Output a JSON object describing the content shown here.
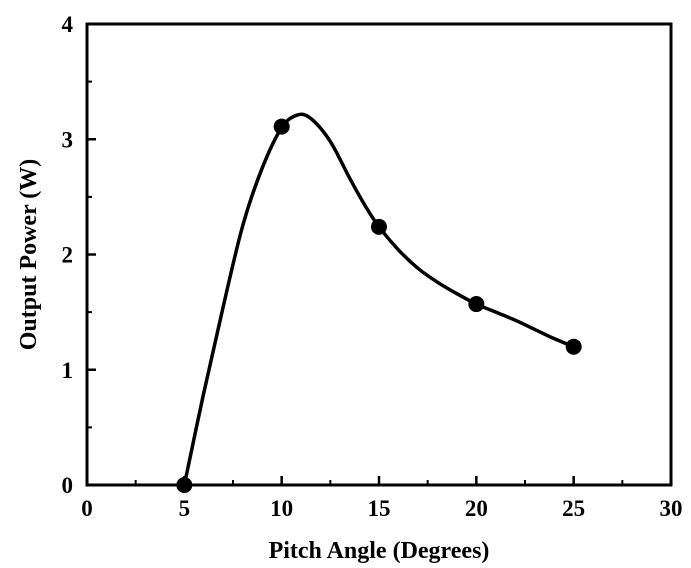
{
  "chart_data": {
    "type": "line",
    "title": "",
    "xlabel": "Pitch Angle (Degrees)",
    "ylabel": "Output Power (W)",
    "xlim": [
      0,
      30
    ],
    "ylim": [
      0,
      4
    ],
    "x_ticks": [
      0,
      5,
      10,
      15,
      20,
      25,
      30
    ],
    "y_ticks": [
      0,
      1,
      2,
      3,
      4
    ],
    "x_tick_labels": [
      "0",
      "5",
      "10",
      "15",
      "20",
      "25",
      "30"
    ],
    "y_tick_labels": [
      "0",
      "1",
      "2",
      "3",
      "4"
    ],
    "grid": false,
    "legend": "none",
    "series": [
      {
        "points": [
          {
            "x": 5,
            "y": 0.0
          },
          {
            "x": 10,
            "y": 3.11
          },
          {
            "x": 15,
            "y": 2.24
          },
          {
            "x": 20,
            "y": 1.57
          },
          {
            "x": 25,
            "y": 1.2
          }
        ],
        "smooth_curve": [
          {
            "x": 5,
            "y": 0.0
          },
          {
            "x": 6,
            "y": 0.8
          },
          {
            "x": 7,
            "y": 1.55
          },
          {
            "x": 8,
            "y": 2.25
          },
          {
            "x": 9,
            "y": 2.75
          },
          {
            "x": 10,
            "y": 3.1
          },
          {
            "x": 10.8,
            "y": 3.21
          },
          {
            "x": 11.5,
            "y": 3.18
          },
          {
            "x": 12.5,
            "y": 2.98
          },
          {
            "x": 13.5,
            "y": 2.66
          },
          {
            "x": 14.3,
            "y": 2.42
          },
          {
            "x": 15,
            "y": 2.24
          },
          {
            "x": 16,
            "y": 2.04
          },
          {
            "x": 17,
            "y": 1.88
          },
          {
            "x": 18,
            "y": 1.76
          },
          {
            "x": 19,
            "y": 1.66
          },
          {
            "x": 20,
            "y": 1.57
          },
          {
            "x": 21,
            "y": 1.5
          },
          {
            "x": 22,
            "y": 1.43
          },
          {
            "x": 23,
            "y": 1.35
          },
          {
            "x": 24,
            "y": 1.27
          },
          {
            "x": 25,
            "y": 1.2
          }
        ],
        "color": "#000000",
        "marker": "filled-circle"
      }
    ]
  }
}
